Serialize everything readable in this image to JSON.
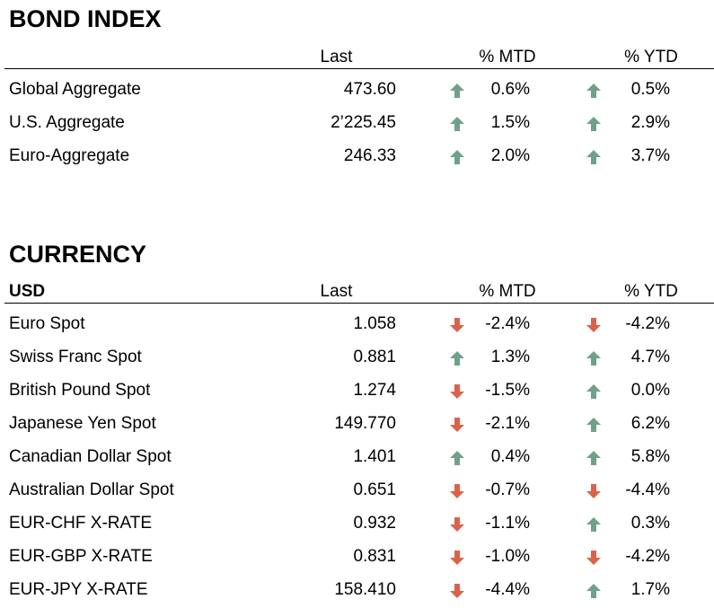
{
  "colors": {
    "up": "#6fa18a",
    "down": "#d9634a"
  },
  "bond": {
    "title": "BOND INDEX",
    "header": {
      "label": "",
      "last": "Last",
      "mtd": "% MTD",
      "ytd": "% YTD"
    },
    "rows": [
      {
        "name": "Global Aggregate",
        "last": "473.60",
        "mtd": "0.6%",
        "mtd_dir": "up",
        "ytd": "0.5%",
        "ytd_dir": "up"
      },
      {
        "name": "U.S. Aggregate",
        "last": "2’225.45",
        "mtd": "1.5%",
        "mtd_dir": "up",
        "ytd": "2.9%",
        "ytd_dir": "up"
      },
      {
        "name": "Euro-Aggregate",
        "last": "246.33",
        "mtd": "2.0%",
        "mtd_dir": "up",
        "ytd": "3.7%",
        "ytd_dir": "up"
      }
    ]
  },
  "currency": {
    "title": "CURRENCY",
    "header": {
      "label": "USD",
      "last": "Last",
      "mtd": "% MTD",
      "ytd": "% YTD"
    },
    "rows": [
      {
        "name": "Euro Spot",
        "last": "1.058",
        "mtd": "-2.4%",
        "mtd_dir": "down",
        "ytd": "-4.2%",
        "ytd_dir": "down"
      },
      {
        "name": "Swiss Franc Spot",
        "last": "0.881",
        "mtd": "1.3%",
        "mtd_dir": "up",
        "ytd": "4.7%",
        "ytd_dir": "up"
      },
      {
        "name": "British Pound Spot",
        "last": "1.274",
        "mtd": "-1.5%",
        "mtd_dir": "down",
        "ytd": "0.0%",
        "ytd_dir": "up"
      },
      {
        "name": "Japanese Yen Spot",
        "last": "149.770",
        "mtd": "-2.1%",
        "mtd_dir": "down",
        "ytd": "6.2%",
        "ytd_dir": "up"
      },
      {
        "name": "Canadian Dollar Spot",
        "last": "1.401",
        "mtd": "0.4%",
        "mtd_dir": "up",
        "ytd": "5.8%",
        "ytd_dir": "up"
      },
      {
        "name": "Australian Dollar Spot",
        "last": "0.651",
        "mtd": "-0.7%",
        "mtd_dir": "down",
        "ytd": "-4.4%",
        "ytd_dir": "down"
      },
      {
        "name": "EUR-CHF X-RATE",
        "last": "0.932",
        "mtd": "-1.1%",
        "mtd_dir": "down",
        "ytd": "0.3%",
        "ytd_dir": "up"
      },
      {
        "name": "EUR-GBP X-RATE",
        "last": "0.831",
        "mtd": "-1.0%",
        "mtd_dir": "down",
        "ytd": "-4.2%",
        "ytd_dir": "down"
      },
      {
        "name": "EUR-JPY X-RATE",
        "last": "158.410",
        "mtd": "-4.4%",
        "mtd_dir": "down",
        "ytd": "1.7%",
        "ytd_dir": "up"
      }
    ]
  }
}
